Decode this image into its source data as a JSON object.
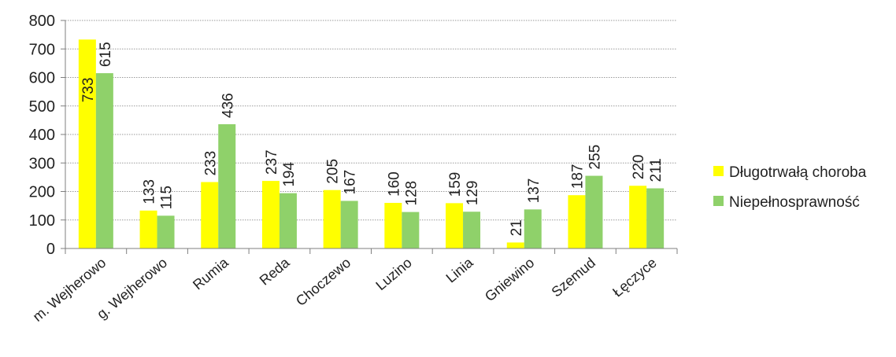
{
  "chart_data": {
    "type": "bar",
    "title": "",
    "xlabel": "",
    "ylabel": "",
    "ylim": [
      0,
      800
    ],
    "yticks": [
      0,
      100,
      200,
      300,
      400,
      500,
      600,
      700,
      800
    ],
    "grid": true,
    "legend_position": "right",
    "categories": [
      "m. Wejherowo",
      "g. Wejherowo",
      "Rumia",
      "Reda",
      "Choczewo",
      "Luzino",
      "Linia",
      "Gniewino",
      "Szemud",
      "Łęczyce"
    ],
    "series": [
      {
        "name": "Długotrwałą choroba",
        "color": "#ffff00",
        "values": [
          733,
          133,
          233,
          237,
          205,
          160,
          159,
          21,
          187,
          220
        ]
      },
      {
        "name": "Niepełnosprawność",
        "color": "#8fd16a",
        "values": [
          615,
          115,
          436,
          194,
          167,
          128,
          129,
          137,
          255,
          211
        ]
      }
    ]
  }
}
